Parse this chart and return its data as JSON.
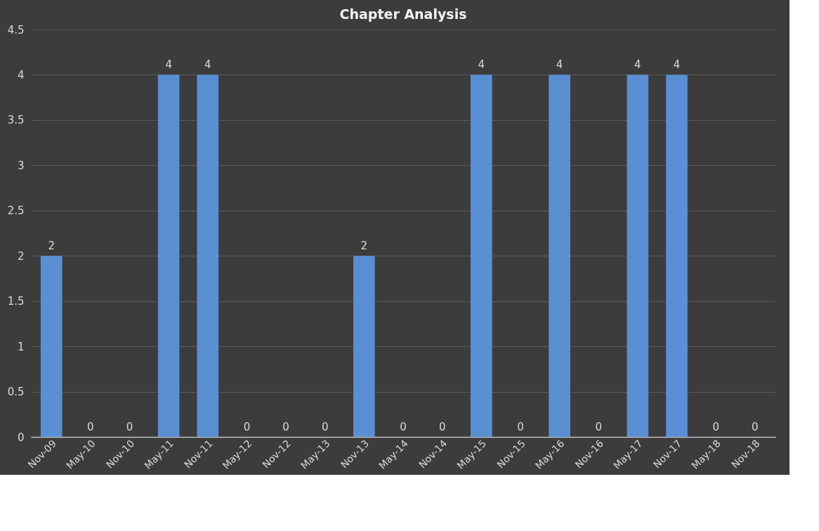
{
  "chart_data": {
    "type": "bar",
    "title": "Chapter Analysis",
    "categories": [
      "Nov-09",
      "May-10",
      "Nov-10",
      "May-11",
      "Nov-11",
      "May-12",
      "Nov-12",
      "May-13",
      "Nov-13",
      "May-14",
      "Nov-14",
      "May-15",
      "Nov-15",
      "May-16",
      "Nov-16",
      "May-17",
      "Nov-17",
      "May-18",
      "Nov-18"
    ],
    "values": [
      2,
      0,
      0,
      4,
      4,
      0,
      0,
      0,
      2,
      0,
      0,
      4,
      0,
      4,
      0,
      4,
      4,
      0,
      0
    ],
    "color": "#5b8fd4",
    "ylim": [
      0,
      4.5
    ],
    "yticks": [
      0,
      0.5,
      1,
      1.5,
      2,
      2.5,
      3,
      3.5,
      4,
      4.5
    ],
    "grid": "y",
    "data_labels": true
  }
}
